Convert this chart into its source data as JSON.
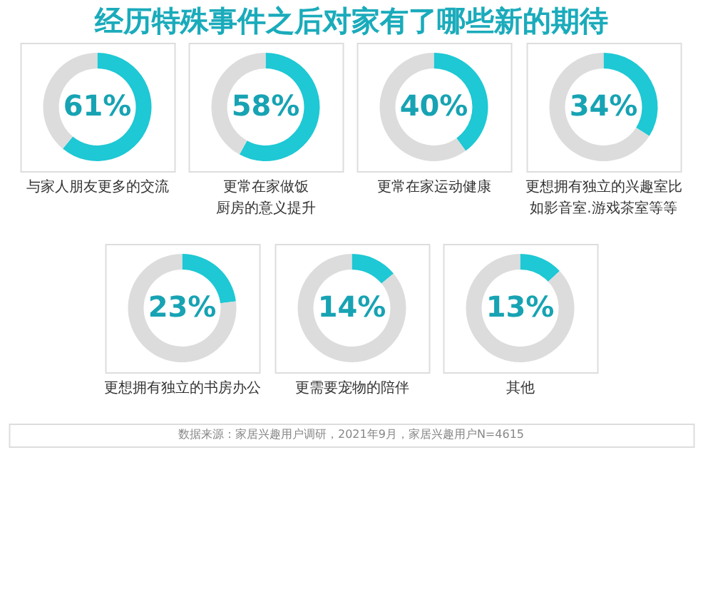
{
  "chart_data": [
    {
      "type": "other",
      "title": "经历特殊事件之后对家有了哪些新的期待",
      "annotations": [
        "数据来源：家居兴趣用户调研，2021年9月，家居兴趣用户N=4615"
      ]
    },
    {
      "type": "donut",
      "title": "与家人朋友更多的交流",
      "categories": [
        null,
        null
      ],
      "values": [
        61,
        39
      ],
      "colors": [
        "#1ec8d4",
        "#dcdcdc"
      ],
      "value_labels": [
        "61%",
        null
      ]
    },
    {
      "type": "donut",
      "title": "更常在家做饭厨房的意义提升",
      "categories": [
        null,
        null
      ],
      "values": [
        58,
        42
      ],
      "colors": [
        "#1ec8d4",
        "#dcdcdc"
      ],
      "value_labels": [
        "58%",
        null
      ]
    },
    {
      "type": "donut",
      "title": "更常在家运动健康",
      "categories": [
        null,
        null
      ],
      "values": [
        40,
        60
      ],
      "colors": [
        "#1ec8d4",
        "#dcdcdc"
      ],
      "value_labels": [
        "40%",
        null
      ]
    },
    {
      "type": "donut",
      "title": "更想拥有独立的兴趣室比如影音室.游戏茶室等等",
      "categories": [
        null,
        null
      ],
      "values": [
        34,
        66
      ],
      "colors": [
        "#1ec8d4",
        "#dcdcdc"
      ],
      "value_labels": [
        "34%",
        null
      ]
    },
    {
      "type": "donut",
      "title": "更想拥有独立的书房办公",
      "categories": [
        null,
        null
      ],
      "values": [
        23,
        77
      ],
      "colors": [
        "#1ec8d4",
        "#dcdcdc"
      ],
      "value_labels": [
        "23%",
        null
      ]
    },
    {
      "type": "donut",
      "title": "更需要宠物的陪伴",
      "categories": [
        null,
        null
      ],
      "values": [
        14,
        86
      ],
      "colors": [
        "#1ec8d4",
        "#dcdcdc"
      ],
      "value_labels": [
        "14%",
        null
      ]
    },
    {
      "type": "donut",
      "title": "其他",
      "categories": [
        null,
        null
      ],
      "values": [
        13,
        87
      ],
      "colors": [
        "#1ec8d4",
        "#dcdcdc"
      ],
      "value_labels": [
        "13%",
        null
      ]
    }
  ]
}
